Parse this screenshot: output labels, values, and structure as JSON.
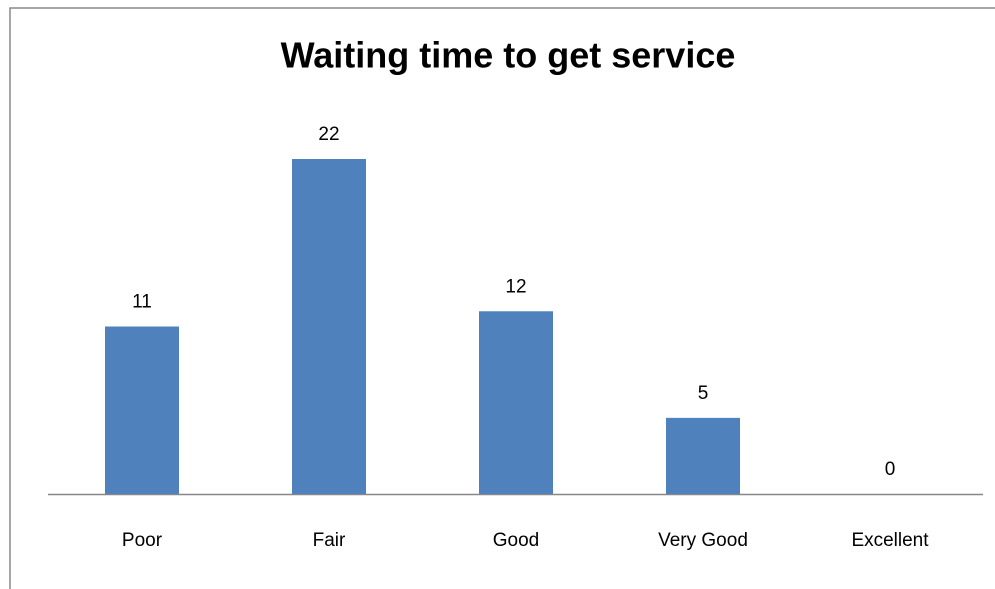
{
  "chart_data": {
    "type": "bar",
    "title": "Waiting time to get service",
    "categories": [
      "Poor",
      "Fair",
      "Good",
      "Very Good",
      "Excellent"
    ],
    "values": [
      11,
      22,
      12,
      5,
      0
    ],
    "color": "#4f81bd"
  }
}
